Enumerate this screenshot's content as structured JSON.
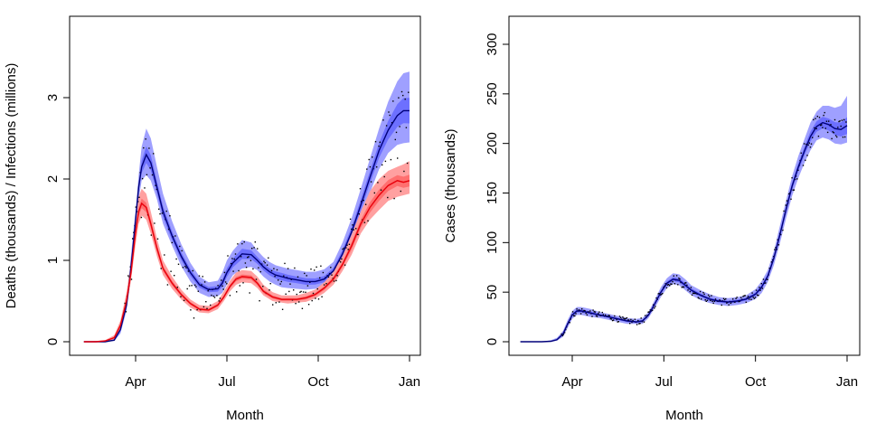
{
  "chart_data": [
    {
      "type": "line",
      "panel": "left",
      "title": "",
      "xlabel": "Month",
      "ylabel": "Deaths (thousands) / Infections (millions)",
      "x_unit": "month index (Apr=0, Jul=3, Oct=6, Jan=9)",
      "xlim": [
        -2.0,
        9.0
      ],
      "ylim": [
        0,
        3.9
      ],
      "xticks": [
        {
          "value": 0,
          "label": "Apr"
        },
        {
          "value": 3,
          "label": "Jul"
        },
        {
          "value": 6,
          "label": "Oct"
        },
        {
          "value": 9,
          "label": "Jan"
        }
      ],
      "yticks": [
        {
          "value": 0,
          "label": "0"
        },
        {
          "value": 1,
          "label": "1"
        },
        {
          "value": 2,
          "label": "2"
        },
        {
          "value": 3,
          "label": "3"
        }
      ],
      "series": [
        {
          "name": "Infections (millions)",
          "color": "#00007a",
          "band_outer_color": "#9fa0ff",
          "band_inner_color": "#6d70ff",
          "x": [
            -1.7,
            -1.3,
            -1.0,
            -0.7,
            -0.5,
            -0.3,
            -0.2,
            -0.1,
            0.0,
            0.1,
            0.2,
            0.35,
            0.5,
            0.7,
            0.9,
            1.2,
            1.5,
            1.8,
            2.1,
            2.4,
            2.7,
            2.85,
            3.0,
            3.2,
            3.5,
            3.8,
            4.0,
            4.2,
            4.4,
            4.6,
            4.8,
            5.0,
            5.3,
            5.6,
            5.9,
            6.2,
            6.5,
            6.8,
            7.1,
            7.4,
            7.7,
            8.0,
            8.3,
            8.6,
            8.8,
            9.0
          ],
          "y": [
            0,
            0,
            0,
            0.02,
            0.15,
            0.45,
            0.75,
            1.1,
            1.5,
            1.9,
            2.15,
            2.3,
            2.2,
            1.9,
            1.6,
            1.3,
            1.05,
            0.85,
            0.7,
            0.64,
            0.65,
            0.72,
            0.85,
            0.97,
            1.08,
            1.07,
            1.0,
            0.92,
            0.86,
            0.82,
            0.8,
            0.78,
            0.76,
            0.74,
            0.74,
            0.77,
            0.87,
            1.08,
            1.35,
            1.68,
            2.02,
            2.35,
            2.6,
            2.78,
            2.84,
            2.84
          ],
          "lower": [
            0,
            0,
            0,
            0.01,
            0.1,
            0.38,
            0.65,
            1.0,
            1.4,
            1.75,
            1.98,
            2.05,
            1.98,
            1.75,
            1.45,
            1.18,
            0.93,
            0.74,
            0.6,
            0.55,
            0.56,
            0.6,
            0.7,
            0.82,
            0.9,
            0.92,
            0.88,
            0.8,
            0.74,
            0.7,
            0.67,
            0.66,
            0.65,
            0.64,
            0.65,
            0.68,
            0.77,
            0.95,
            1.2,
            1.5,
            1.83,
            2.12,
            2.32,
            2.42,
            2.44,
            2.45
          ],
          "upper": [
            0,
            0,
            0.01,
            0.04,
            0.22,
            0.55,
            0.88,
            1.25,
            1.62,
            2.05,
            2.4,
            2.62,
            2.5,
            2.15,
            1.82,
            1.48,
            1.2,
            0.97,
            0.8,
            0.73,
            0.75,
            0.85,
            1.0,
            1.12,
            1.25,
            1.22,
            1.12,
            1.04,
            0.98,
            0.94,
            0.92,
            0.9,
            0.88,
            0.86,
            0.86,
            0.89,
            0.98,
            1.22,
            1.52,
            1.88,
            2.25,
            2.62,
            2.95,
            3.2,
            3.3,
            3.32
          ]
        },
        {
          "name": "Deaths (thousands)",
          "color": "#e8000b",
          "band_outer_color": "#ffa0a0",
          "band_inner_color": "#ff6f6f",
          "x": [
            -1.7,
            -1.3,
            -1.0,
            -0.7,
            -0.5,
            -0.3,
            -0.15,
            0.0,
            0.1,
            0.2,
            0.35,
            0.5,
            0.7,
            0.9,
            1.2,
            1.5,
            1.8,
            2.1,
            2.4,
            2.7,
            2.9,
            3.1,
            3.3,
            3.5,
            3.8,
            4.0,
            4.2,
            4.5,
            4.8,
            5.0,
            5.3,
            5.6,
            5.9,
            6.2,
            6.5,
            6.8,
            7.1,
            7.4,
            7.7,
            8.0,
            8.3,
            8.6,
            8.8,
            9.0
          ],
          "y": [
            0,
            0,
            0.01,
            0.05,
            0.2,
            0.5,
            0.85,
            1.35,
            1.6,
            1.7,
            1.65,
            1.45,
            1.15,
            0.9,
            0.72,
            0.58,
            0.47,
            0.4,
            0.39,
            0.45,
            0.55,
            0.68,
            0.77,
            0.8,
            0.79,
            0.72,
            0.62,
            0.55,
            0.52,
            0.52,
            0.52,
            0.54,
            0.58,
            0.66,
            0.77,
            0.95,
            1.18,
            1.45,
            1.65,
            1.8,
            1.92,
            1.98,
            1.96,
            1.98
          ],
          "lower": [
            0,
            0,
            0,
            0.03,
            0.15,
            0.42,
            0.75,
            1.2,
            1.45,
            1.55,
            1.5,
            1.33,
            1.05,
            0.82,
            0.65,
            0.52,
            0.42,
            0.36,
            0.35,
            0.4,
            0.5,
            0.62,
            0.7,
            0.73,
            0.72,
            0.66,
            0.57,
            0.5,
            0.48,
            0.47,
            0.48,
            0.49,
            0.53,
            0.6,
            0.7,
            0.87,
            1.07,
            1.33,
            1.5,
            1.62,
            1.73,
            1.78,
            1.8,
            1.82
          ],
          "upper": [
            0,
            0.01,
            0.02,
            0.08,
            0.26,
            0.6,
            0.98,
            1.55,
            1.78,
            1.88,
            1.82,
            1.6,
            1.27,
            1.0,
            0.8,
            0.64,
            0.52,
            0.45,
            0.44,
            0.5,
            0.62,
            0.75,
            0.85,
            0.88,
            0.87,
            0.8,
            0.7,
            0.61,
            0.57,
            0.57,
            0.57,
            0.6,
            0.64,
            0.73,
            0.86,
            1.05,
            1.32,
            1.6,
            1.85,
            2.0,
            2.1,
            2.15,
            2.18,
            2.22
          ]
        }
      ],
      "observations_color": "#000000"
    },
    {
      "type": "line",
      "panel": "right",
      "title": "",
      "xlabel": "Month",
      "ylabel": "Cases (thousands)",
      "x_unit": "month index (Apr=0, Jul=3, Oct=6, Jan=9)",
      "xlim": [
        -2.0,
        9.0
      ],
      "ylim": [
        0,
        320
      ],
      "xticks": [
        {
          "value": 0,
          "label": "Apr"
        },
        {
          "value": 3,
          "label": "Jul"
        },
        {
          "value": 6,
          "label": "Oct"
        },
        {
          "value": 9,
          "label": "Jan"
        }
      ],
      "yticks": [
        {
          "value": 0,
          "label": "0"
        },
        {
          "value": 50,
          "label": "50"
        },
        {
          "value": 100,
          "label": "100"
        },
        {
          "value": 150,
          "label": "150"
        },
        {
          "value": 200,
          "label": "200"
        },
        {
          "value": 250,
          "label": "250"
        },
        {
          "value": 300,
          "label": "300"
        }
      ],
      "series": [
        {
          "name": "Cases (thousands)",
          "color": "#00007a",
          "band_outer_color": "#9fa0ff",
          "band_inner_color": "#6d70ff",
          "x": [
            -1.7,
            -1.3,
            -1.0,
            -0.7,
            -0.5,
            -0.3,
            -0.15,
            0.0,
            0.15,
            0.3,
            0.6,
            0.9,
            1.2,
            1.5,
            1.8,
            2.1,
            2.3,
            2.5,
            2.7,
            2.9,
            3.1,
            3.3,
            3.5,
            3.7,
            3.9,
            4.2,
            4.5,
            4.8,
            5.1,
            5.4,
            5.7,
            6.0,
            6.2,
            6.4,
            6.6,
            6.8,
            7.0,
            7.2,
            7.4,
            7.6,
            7.8,
            8.0,
            8.2,
            8.4,
            8.6,
            8.8,
            9.0
          ],
          "y": [
            0,
            0,
            0,
            0.5,
            2,
            8,
            18,
            27,
            31,
            31,
            29,
            27,
            25,
            23,
            21,
            20,
            21,
            27,
            38,
            50,
            59,
            63,
            62,
            57,
            52,
            47,
            43,
            41,
            40,
            41,
            43,
            48,
            55,
            66,
            84,
            108,
            133,
            157,
            176,
            192,
            207,
            217,
            221,
            219,
            215,
            214,
            218
          ],
          "lower": [
            0,
            0,
            0,
            0,
            1,
            5,
            14,
            23,
            27,
            27,
            25,
            24,
            22,
            20,
            18,
            18,
            18,
            24,
            34,
            45,
            54,
            58,
            57,
            52,
            47,
            42,
            39,
            37,
            36,
            37,
            39,
            43,
            49,
            60,
            77,
            99,
            124,
            147,
            165,
            180,
            193,
            203,
            206,
            204,
            200,
            199,
            201
          ],
          "upper": [
            0,
            0,
            0,
            1.5,
            4,
            11,
            22,
            31,
            35,
            35,
            33,
            30,
            28,
            26,
            24,
            23,
            24,
            30,
            42,
            55,
            64,
            69,
            68,
            63,
            57,
            52,
            48,
            45,
            44,
            45,
            47,
            53,
            61,
            72,
            91,
            117,
            142,
            167,
            187,
            204,
            221,
            232,
            238,
            238,
            236,
            238,
            248
          ]
        }
      ],
      "observations_color": "#000000"
    }
  ]
}
